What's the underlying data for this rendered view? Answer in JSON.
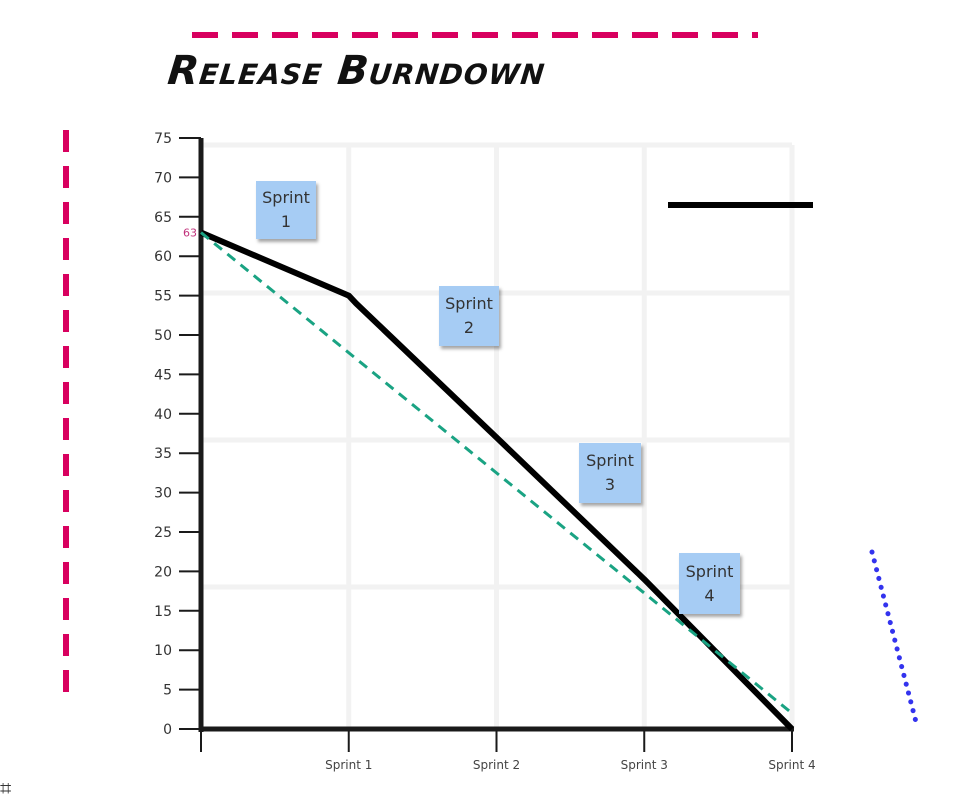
{
  "title": "Release Burndown",
  "corner_glyph": "⌗",
  "chart_data": {
    "type": "line",
    "title": "Release Burndown",
    "xlabel": "",
    "ylabel": "",
    "categories": [
      "",
      "Sprint 1",
      "Sprint 2",
      "Sprint 3",
      "Sprint 4"
    ],
    "y_ticks": [
      0,
      5,
      10,
      15,
      20,
      25,
      30,
      35,
      40,
      45,
      50,
      55,
      60,
      65,
      70,
      75
    ],
    "ylim": [
      0,
      75
    ],
    "grid": true,
    "start_label": "63",
    "series": [
      {
        "role": "actual",
        "color": "#000000",
        "points": [
          [
            0,
            63
          ],
          [
            1,
            55
          ],
          [
            1.05,
            54
          ],
          [
            2,
            37
          ],
          [
            3,
            19
          ],
          [
            4,
            0
          ]
        ]
      },
      {
        "role": "ideal",
        "color": "#1aa383",
        "dashed": true,
        "points": [
          [
            0,
            63
          ],
          [
            4,
            2
          ]
        ]
      }
    ],
    "notes": [
      {
        "line1": "Sprint",
        "line2": "1"
      },
      {
        "line1": "Sprint",
        "line2": "2"
      },
      {
        "line1": "Sprint",
        "line2": "3"
      },
      {
        "line1": "Sprint",
        "line2": "4"
      }
    ]
  },
  "colors": {
    "pink": "#d8005f",
    "blue": "#3333ee",
    "note": "#a6ccf4",
    "ideal": "#1aa383",
    "axis": "#1a1a1a"
  }
}
